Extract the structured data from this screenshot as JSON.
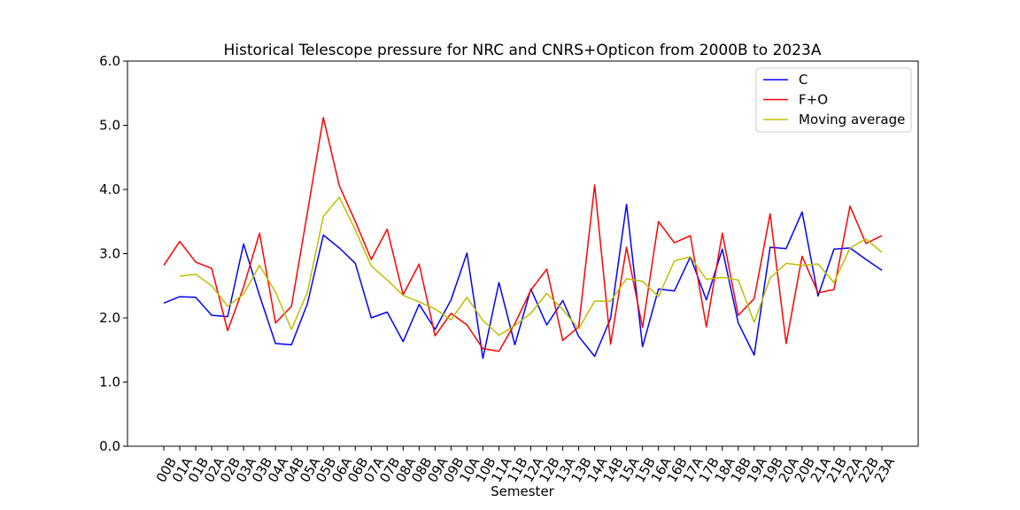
{
  "chart_data": {
    "type": "line",
    "title": "Historical Telescope pressure for NRC and CNRS+Opticon from 2000B to 2023A",
    "xlabel": "Semester",
    "ylabel": "",
    "ylim": [
      0,
      6
    ],
    "yticks": [
      "0.0",
      "1.0",
      "2.0",
      "3.0",
      "4.0",
      "5.0",
      "6.0"
    ],
    "grid": false,
    "legend_position": "top-right",
    "categories": [
      "00B",
      "01A",
      "01B",
      "02A",
      "02B",
      "03A",
      "03B",
      "04A",
      "04B",
      "05A",
      "05B",
      "06A",
      "06B",
      "07A",
      "07B",
      "08A",
      "08B",
      "09A",
      "09B",
      "10A",
      "10B",
      "11A",
      "11B",
      "12A",
      "12B",
      "13A",
      "13B",
      "14A",
      "14B",
      "15A",
      "15B",
      "16A",
      "16B",
      "17A",
      "17B",
      "18A",
      "18B",
      "19A",
      "19B",
      "20A",
      "20B",
      "21A",
      "21B",
      "22A",
      "22B",
      "23A"
    ],
    "series": [
      {
        "name": "C",
        "color": "#0000ff",
        "values": [
          2.23,
          2.33,
          2.32,
          2.04,
          2.02,
          3.15,
          2.35,
          1.6,
          1.58,
          2.22,
          3.29,
          3.09,
          2.85,
          2.0,
          2.09,
          1.63,
          2.21,
          1.82,
          2.28,
          3.01,
          1.37,
          2.55,
          1.58,
          2.45,
          1.89,
          2.27,
          1.71,
          1.4,
          1.99,
          3.77,
          1.55,
          2.45,
          2.42,
          2.95,
          2.28,
          3.07,
          1.92,
          1.42,
          3.1,
          3.08,
          3.65,
          2.34,
          3.07,
          3.09,
          2.91,
          2.74
        ]
      },
      {
        "name": "F+O",
        "color": "#ff0000",
        "values": [
          2.82,
          3.19,
          2.87,
          2.77,
          1.8,
          2.48,
          3.32,
          1.92,
          2.18,
          3.64,
          5.12,
          4.06,
          3.5,
          2.91,
          3.38,
          2.36,
          2.84,
          1.72,
          2.07,
          1.89,
          1.52,
          1.48,
          1.91,
          2.43,
          2.76,
          1.65,
          1.86,
          4.07,
          1.59,
          3.1,
          1.85,
          3.5,
          3.17,
          3.28,
          1.86,
          3.32,
          2.04,
          2.3,
          3.62,
          1.6,
          2.96,
          2.39,
          2.44,
          3.74,
          3.16,
          3.28
        ]
      },
      {
        "name": "Moving average",
        "color": "#bfbf00",
        "values": [
          null,
          2.65,
          2.68,
          2.5,
          2.18,
          2.37,
          2.82,
          2.4,
          1.82,
          2.4,
          3.58,
          3.88,
          3.37,
          2.81,
          2.59,
          2.35,
          2.25,
          2.14,
          1.97,
          2.32,
          1.96,
          1.73,
          1.88,
          2.07,
          2.38,
          2.13,
          1.83,
          2.26,
          2.26,
          2.61,
          2.57,
          2.33,
          2.89,
          2.95,
          2.6,
          2.63,
          2.59,
          1.93,
          2.62,
          2.85,
          2.82,
          2.84,
          2.55,
          3.09,
          3.23,
          3.02
        ]
      }
    ]
  }
}
